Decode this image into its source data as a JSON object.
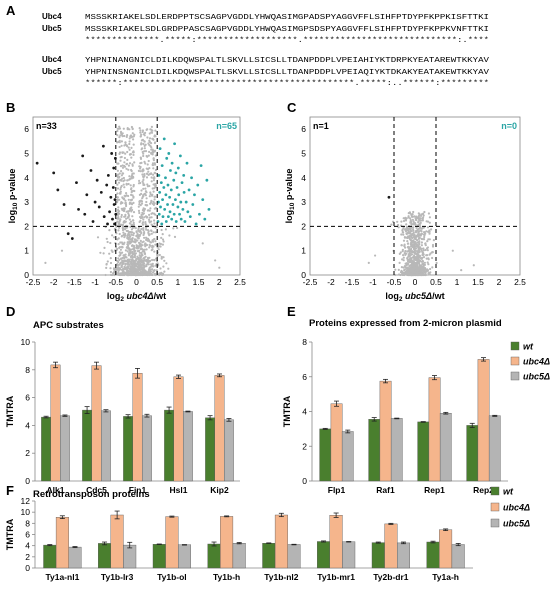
{
  "panel_A": {
    "letter": "A",
    "block1": {
      "names": [
        "Ubc4",
        "Ubc5"
      ],
      "seq1": "MSSSKRIAKELSDLERDPPTSCSAGPVGDDLYHWQASIMGPADSPYAGGVFFLSIHFPTDYPFKPPKISFTTKI",
      "seq2": "MSSSKRIAKELSDLGRDPPASCSAGPVGDDLYHWQASIMGPSDSPYAGGVFFLSIHFPTDYPFKPPKVNFTTKI",
      "cons": "**************.*****:*******************.*****************************:.****"
    },
    "block2": {
      "names": [
        "Ubc4",
        "Ubc5"
      ],
      "seq1": "YHPNINANGNICLDILKDQWSPALTLSKVLLSICSLLTDANPDDPLVPEIAHIYKTDRPKYEATAREWTKKYAV",
      "seq2": "YHPNINSNGNICLDILKDQWSPALTLSKVLLSICSLLTDANPDDPLVPEIAQIYKTDKAKYEATAKEWTKKYAV",
      "cons": "******:*******************************************.*****:..******:*********"
    }
  },
  "chart_data": [
    {
      "id": "B",
      "letter": "B",
      "type": "scatter",
      "xlabel_pre": "log",
      "xlabel_sub": "2",
      "xlabel_gene": "ubc4Δ",
      "xlabel_post": "/wt",
      "ylabel_pre": "log",
      "ylabel_sub": "10",
      "ylabel_post": " p-value",
      "xlim": [
        -2.5,
        2.5
      ],
      "ylim": [
        0,
        6.5
      ],
      "xticks": [
        "-2.5",
        "-2",
        "-1.5",
        "-1",
        "-0.5",
        "0",
        "0.5",
        "1",
        "1.5",
        "2",
        "2.5"
      ],
      "yticks": [
        "0",
        "1",
        "2",
        "3",
        "4",
        "5",
        "6"
      ],
      "thresholds": {
        "x": [
          -0.5,
          0.5
        ],
        "y": 2
      },
      "n_down": "n=33",
      "n_up": "n=65",
      "down_points": [
        [
          -2.4,
          4.6
        ],
        [
          -2.0,
          4.2
        ],
        [
          -1.9,
          3.5
        ],
        [
          -1.75,
          2.9
        ],
        [
          -1.65,
          1.7
        ],
        [
          -1.55,
          1.5
        ],
        [
          -1.45,
          3.8
        ],
        [
          -1.4,
          2.7
        ],
        [
          -1.3,
          4.9
        ],
        [
          -1.25,
          2.5
        ],
        [
          -1.2,
          3.3
        ],
        [
          -1.1,
          4.3
        ],
        [
          -1.05,
          2.2
        ],
        [
          -1.0,
          3.0
        ],
        [
          -0.95,
          3.9
        ],
        [
          -0.9,
          2.8
        ],
        [
          -0.85,
          3.4
        ],
        [
          -0.8,
          5.3
        ],
        [
          -0.78,
          2.4
        ],
        [
          -0.72,
          3.7
        ],
        [
          -0.7,
          2.1
        ],
        [
          -0.68,
          4.1
        ],
        [
          -0.65,
          2.6
        ],
        [
          -0.62,
          3.2
        ],
        [
          -0.6,
          5.0
        ],
        [
          -0.58,
          2.3
        ],
        [
          -0.56,
          3.6
        ],
        [
          -0.55,
          4.4
        ],
        [
          -0.54,
          2.9
        ],
        [
          -0.53,
          2.1
        ],
        [
          -0.52,
          3.1
        ],
        [
          -0.51,
          4.8
        ],
        [
          -0.5,
          2.5
        ]
      ],
      "up_points": [
        [
          0.52,
          2.2
        ],
        [
          0.53,
          3.0
        ],
        [
          0.54,
          4.1
        ],
        [
          0.55,
          2.5
        ],
        [
          0.56,
          3.4
        ],
        [
          0.57,
          5.2
        ],
        [
          0.58,
          2.8
        ],
        [
          0.6,
          3.8
        ],
        [
          0.61,
          2.1
        ],
        [
          0.62,
          4.5
        ],
        [
          0.63,
          3.1
        ],
        [
          0.64,
          2.4
        ],
        [
          0.66,
          3.6
        ],
        [
          0.67,
          5.6
        ],
        [
          0.68,
          2.7
        ],
        [
          0.7,
          4.0
        ],
        [
          0.71,
          3.3
        ],
        [
          0.72,
          2.2
        ],
        [
          0.73,
          4.8
        ],
        [
          0.75,
          2.9
        ],
        [
          0.76,
          3.7
        ],
        [
          0.77,
          2.4
        ],
        [
          0.78,
          5.0
        ],
        [
          0.8,
          3.2
        ],
        [
          0.81,
          2.6
        ],
        [
          0.82,
          4.3
        ],
        [
          0.84,
          3.5
        ],
        [
          0.85,
          2.3
        ],
        [
          0.86,
          4.6
        ],
        [
          0.88,
          2.9
        ],
        [
          0.9,
          3.9
        ],
        [
          0.91,
          2.5
        ],
        [
          0.92,
          5.4
        ],
        [
          0.94,
          3.1
        ],
        [
          0.95,
          4.2
        ],
        [
          0.96,
          2.2
        ],
        [
          0.98,
          3.6
        ],
        [
          1.0,
          2.8
        ],
        [
          1.01,
          4.4
        ],
        [
          1.02,
          3.3
        ],
        [
          1.04,
          2.5
        ],
        [
          1.06,
          4.9
        ],
        [
          1.07,
          3.0
        ],
        [
          1.08,
          2.3
        ],
        [
          1.1,
          3.8
        ],
        [
          1.12,
          2.7
        ],
        [
          1.14,
          4.1
        ],
        [
          1.15,
          3.4
        ],
        [
          1.17,
          2.2
        ],
        [
          1.2,
          3.0
        ],
        [
          1.22,
          4.6
        ],
        [
          1.24,
          2.6
        ],
        [
          1.27,
          3.5
        ],
        [
          1.3,
          2.4
        ],
        [
          1.33,
          4.0
        ],
        [
          1.36,
          2.9
        ],
        [
          1.4,
          3.3
        ],
        [
          1.44,
          2.1
        ],
        [
          1.48,
          3.7
        ],
        [
          1.52,
          2.5
        ],
        [
          1.56,
          4.5
        ],
        [
          1.6,
          3.1
        ],
        [
          1.65,
          2.3
        ],
        [
          1.7,
          3.9
        ],
        [
          1.75,
          2.7
        ]
      ],
      "cloud": {
        "n": 1400,
        "seed": 7,
        "sd_x": 0.27,
        "max_y": 6.1,
        "outliers": [
          [
            1.9,
            0.6
          ],
          [
            -1.8,
            1.0
          ],
          [
            2.0,
            0.3
          ],
          [
            -2.2,
            0.5
          ],
          [
            1.6,
            1.3
          ]
        ]
      }
    },
    {
      "id": "C",
      "letter": "C",
      "type": "scatter",
      "xlabel_pre": "log",
      "xlabel_sub": "2",
      "xlabel_gene": "ubc5Δ",
      "xlabel_post": "/wt",
      "ylabel_pre": "log",
      "ylabel_sub": "10",
      "ylabel_post": " p-value",
      "xlim": [
        -2.5,
        2.5
      ],
      "ylim": [
        0,
        6.5
      ],
      "xticks": [
        "-2.5",
        "-2",
        "-1.5",
        "-1",
        "-0.5",
        "0",
        "0.5",
        "1",
        "1.5",
        "2",
        "2.5"
      ],
      "yticks": [
        "0",
        "1",
        "2",
        "3",
        "4",
        "5",
        "6"
      ],
      "thresholds": {
        "x": [
          -0.5,
          0.5
        ],
        "y": 2
      },
      "n_down": "n=1",
      "n_up": "n=0",
      "down_points": [
        [
          -0.62,
          3.2
        ]
      ],
      "up_points": [],
      "cloud": {
        "n": 900,
        "seed": 19,
        "sd_x": 0.15,
        "max_y": 2.6,
        "outliers": [
          [
            1.4,
            0.4
          ],
          [
            -1.1,
            0.5
          ],
          [
            0.9,
            1.0
          ],
          [
            -0.95,
            0.8
          ],
          [
            1.1,
            0.2
          ]
        ]
      }
    },
    {
      "id": "D",
      "letter": "D",
      "type": "bar",
      "title": "APC substrates",
      "ylabel": "TMTRA",
      "ylim": [
        0,
        10
      ],
      "yticks": [
        "0",
        "2",
        "4",
        "6",
        "8",
        "10"
      ],
      "categories": [
        "Alk1",
        "Cdc5",
        "Fin1",
        "Hsl1",
        "Kip2"
      ],
      "series": [
        {
          "name": "wt",
          "color": "#4a7f2e",
          "values": [
            4.6,
            5.1,
            4.65,
            5.1,
            4.55
          ],
          "errors": [
            0.06,
            0.25,
            0.12,
            0.22,
            0.15
          ]
        },
        {
          "name": "ubc4Δ",
          "color": "#f5b58c",
          "values": [
            8.35,
            8.3,
            7.75,
            7.5,
            7.6
          ],
          "errors": [
            0.2,
            0.25,
            0.35,
            0.12,
            0.1
          ]
        },
        {
          "name": "ubc5Δ",
          "color": "#b4b4b4",
          "values": [
            4.7,
            5.05,
            4.7,
            5.0,
            4.4
          ],
          "errors": [
            0.05,
            0.08,
            0.1,
            0.03,
            0.1
          ]
        }
      ],
      "legend": false
    },
    {
      "id": "E",
      "letter": "E",
      "type": "bar",
      "title": "Proteins expressed from 2-micron plasmid",
      "ylabel": "TMTRA",
      "ylim": [
        0,
        8
      ],
      "yticks": [
        "0",
        "2",
        "4",
        "6",
        "8"
      ],
      "categories": [
        "Flp1",
        "Raf1",
        "Rep1",
        "Rep2"
      ],
      "series": [
        {
          "name": "wt",
          "color": "#4a7f2e",
          "values": [
            3.0,
            3.55,
            3.4,
            3.2
          ],
          "errors": [
            0.03,
            0.1,
            0.02,
            0.12
          ]
        },
        {
          "name": "ubc4Δ",
          "color": "#f5b58c",
          "values": [
            4.45,
            5.75,
            5.95,
            7.0
          ],
          "errors": [
            0.15,
            0.1,
            0.12,
            0.1
          ]
        },
        {
          "name": "ubc5Δ",
          "color": "#b4b4b4",
          "values": [
            2.85,
            3.6,
            3.9,
            3.75
          ],
          "errors": [
            0.08,
            0.02,
            0.05,
            0.03
          ]
        }
      ],
      "legend": true
    },
    {
      "id": "F",
      "letter": "F",
      "type": "bar",
      "title": "Retrotransposon proteins",
      "ylabel": "TMTRA",
      "ylim": [
        0,
        12
      ],
      "yticks": [
        "0",
        "2",
        "4",
        "6",
        "8",
        "10",
        "12"
      ],
      "categories": [
        "Ty1a-nl1",
        "Ty1b-lr3",
        "Ty1b-ol",
        "Ty1b-h",
        "Ty1b-nl2",
        "Ty1b-mr1",
        "Ty2b-dr1",
        "Ty1a-h"
      ],
      "series": [
        {
          "name": "wt",
          "color": "#4a7f2e",
          "values": [
            4.1,
            4.4,
            4.25,
            4.3,
            4.45,
            4.75,
            4.55,
            4.65
          ],
          "errors": [
            0.1,
            0.25,
            0.05,
            0.35,
            0.05,
            0.1,
            0.1,
            0.15
          ]
        },
        {
          "name": "ubc4Δ",
          "color": "#f5b58c",
          "values": [
            9.1,
            9.5,
            9.2,
            9.25,
            9.5,
            9.45,
            7.9,
            6.85
          ],
          "errors": [
            0.25,
            0.7,
            0.1,
            0.08,
            0.3,
            0.4,
            0.1,
            0.15
          ]
        },
        {
          "name": "ubc5Δ",
          "color": "#b4b4b4",
          "values": [
            3.75,
            4.1,
            4.15,
            4.45,
            4.2,
            4.7,
            4.5,
            4.2
          ],
          "errors": [
            0.1,
            0.5,
            0.05,
            0.12,
            0.05,
            0.05,
            0.15,
            0.2
          ]
        }
      ],
      "legend": true
    }
  ]
}
